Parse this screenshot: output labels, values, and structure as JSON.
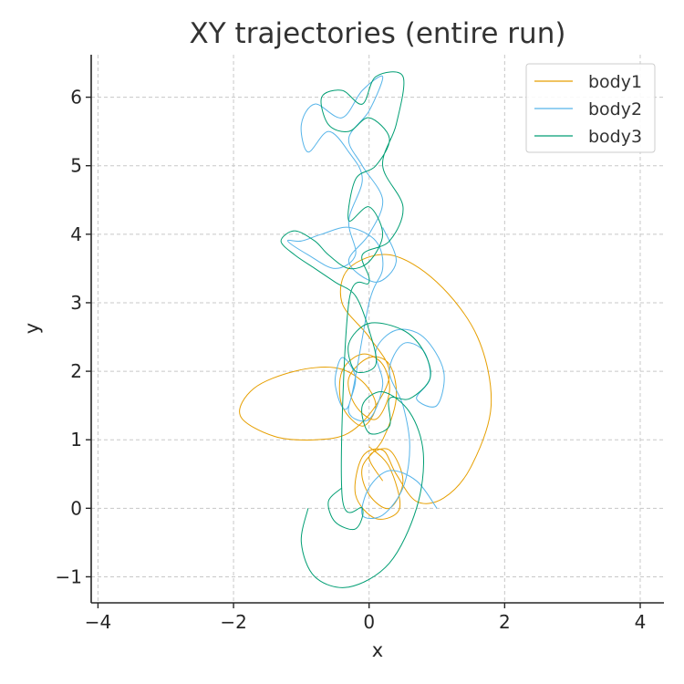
{
  "chart_data": {
    "type": "line",
    "title": "XY trajectories (entire run)",
    "xlabel": "x",
    "ylabel": "y",
    "xlim": [
      -4.1,
      4.35
    ],
    "ylim": [
      -1.38,
      6.62
    ],
    "xticks": [
      -4,
      -2,
      0,
      2,
      4
    ],
    "yticks": [
      -1,
      0,
      1,
      2,
      3,
      4,
      5,
      6
    ],
    "xtick_labels": [
      "−4",
      "−2",
      "0",
      "2",
      "4"
    ],
    "ytick_labels": [
      "−1",
      "0",
      "1",
      "2",
      "3",
      "4",
      "5",
      "6"
    ],
    "grid": true,
    "legend_position": "top-right",
    "series": [
      {
        "name": "body1",
        "color": "#E69F00",
        "points": [
          [
            0.0,
            0.9
          ],
          [
            0.3,
            0.6
          ],
          [
            0.45,
            0.0
          ],
          [
            0.1,
            -0.15
          ],
          [
            -0.2,
            0.2
          ],
          [
            -0.1,
            0.75
          ],
          [
            0.2,
            0.85
          ],
          [
            0.4,
            0.5
          ],
          [
            0.7,
            0.1
          ],
          [
            1.1,
            0.15
          ],
          [
            1.5,
            0.6
          ],
          [
            1.8,
            1.5
          ],
          [
            1.6,
            2.5
          ],
          [
            1.0,
            3.3
          ],
          [
            0.3,
            3.7
          ],
          [
            -0.3,
            3.5
          ],
          [
            -0.4,
            3.0
          ],
          [
            0.0,
            2.5
          ],
          [
            0.3,
            2.0
          ],
          [
            0.1,
            1.5
          ],
          [
            -0.3,
            1.1
          ],
          [
            -0.8,
            1.0
          ],
          [
            -1.4,
            1.05
          ],
          [
            -1.9,
            1.35
          ],
          [
            -1.7,
            1.75
          ],
          [
            -1.1,
            2.0
          ],
          [
            -0.5,
            2.05
          ],
          [
            -0.1,
            1.85
          ],
          [
            0.1,
            1.5
          ],
          [
            -0.1,
            1.2
          ],
          [
            -0.4,
            1.5
          ],
          [
            -0.4,
            2.0
          ],
          [
            -0.1,
            2.25
          ],
          [
            0.2,
            2.1
          ],
          [
            0.3,
            1.7
          ],
          [
            0.1,
            1.3
          ],
          [
            -0.2,
            1.5
          ],
          [
            -0.3,
            1.9
          ],
          [
            0.0,
            2.2
          ],
          [
            0.3,
            2.1
          ],
          [
            0.4,
            1.6
          ],
          [
            0.2,
            1.0
          ],
          [
            -0.1,
            0.6
          ],
          [
            0.0,
            0.2
          ],
          [
            0.3,
            0.0
          ],
          [
            0.5,
            0.4
          ],
          [
            0.3,
            0.85
          ],
          [
            0.0,
            0.75
          ],
          [
            0.2,
            0.4
          ]
        ]
      },
      {
        "name": "body2",
        "color": "#56B4E9",
        "points": [
          [
            1.0,
            0.0
          ],
          [
            0.7,
            0.4
          ],
          [
            0.3,
            0.55
          ],
          [
            0.0,
            0.3
          ],
          [
            -0.1,
            -0.1
          ],
          [
            0.2,
            -0.1
          ],
          [
            0.5,
            0.3
          ],
          [
            0.6,
            0.9
          ],
          [
            0.5,
            1.5
          ],
          [
            0.3,
            2.0
          ],
          [
            0.5,
            2.4
          ],
          [
            0.8,
            2.3
          ],
          [
            0.9,
            1.9
          ],
          [
            0.7,
            1.6
          ],
          [
            1.0,
            1.5
          ],
          [
            1.1,
            2.0
          ],
          [
            0.8,
            2.5
          ],
          [
            0.4,
            2.6
          ],
          [
            0.1,
            2.3
          ],
          [
            0.2,
            1.8
          ],
          [
            0.0,
            1.3
          ],
          [
            -0.3,
            1.4
          ],
          [
            -0.2,
            1.9
          ],
          [
            -0.4,
            2.2
          ],
          [
            -0.5,
            1.8
          ],
          [
            -0.3,
            1.5
          ],
          [
            0.0,
            3.0
          ],
          [
            0.2,
            3.5
          ],
          [
            0.1,
            3.9
          ],
          [
            -0.3,
            4.1
          ],
          [
            -0.7,
            4.0
          ],
          [
            -1.0,
            3.9
          ],
          [
            -1.2,
            3.9
          ],
          [
            -0.9,
            3.7
          ],
          [
            -0.5,
            3.5
          ],
          [
            -0.2,
            3.7
          ],
          [
            -0.3,
            4.2
          ],
          [
            -0.1,
            4.8
          ],
          [
            -0.3,
            5.2
          ],
          [
            -0.6,
            5.5
          ],
          [
            -0.9,
            5.2
          ],
          [
            -1.0,
            5.6
          ],
          [
            -0.8,
            5.9
          ],
          [
            -0.4,
            5.7
          ],
          [
            -0.1,
            6.1
          ],
          [
            0.2,
            6.3
          ],
          [
            0.0,
            5.8
          ],
          [
            -0.3,
            5.4
          ],
          [
            -0.1,
            5.0
          ],
          [
            0.2,
            4.5
          ],
          [
            0.0,
            4.0
          ],
          [
            -0.3,
            3.6
          ],
          [
            0.1,
            3.3
          ],
          [
            0.4,
            3.6
          ],
          [
            0.2,
            4.1
          ]
        ]
      },
      {
        "name": "body3",
        "color": "#009E73",
        "points": [
          [
            -0.9,
            0.0
          ],
          [
            -1.0,
            -0.5
          ],
          [
            -0.8,
            -1.0
          ],
          [
            -0.3,
            -1.15
          ],
          [
            0.3,
            -0.8
          ],
          [
            0.7,
            0.0
          ],
          [
            0.8,
            0.8
          ],
          [
            0.6,
            1.4
          ],
          [
            0.2,
            1.7
          ],
          [
            -0.1,
            1.5
          ],
          [
            0.0,
            1.1
          ],
          [
            0.3,
            1.2
          ],
          [
            0.3,
            1.6
          ],
          [
            0.6,
            1.6
          ],
          [
            0.9,
            1.9
          ],
          [
            0.8,
            2.3
          ],
          [
            0.5,
            2.6
          ],
          [
            0.0,
            2.7
          ],
          [
            -0.3,
            2.4
          ],
          [
            -0.2,
            2.0
          ],
          [
            0.1,
            2.1
          ],
          [
            0.0,
            2.6
          ],
          [
            -0.2,
            3.1
          ],
          [
            -0.5,
            3.3
          ],
          [
            -0.8,
            3.5
          ],
          [
            -1.1,
            3.7
          ],
          [
            -1.3,
            3.9
          ],
          [
            -1.1,
            4.05
          ],
          [
            -0.8,
            3.9
          ],
          [
            -0.6,
            3.7
          ],
          [
            -0.3,
            3.5
          ],
          [
            0.0,
            3.6
          ],
          [
            0.2,
            4.0
          ],
          [
            0.0,
            4.4
          ],
          [
            -0.3,
            4.2
          ],
          [
            -0.2,
            4.8
          ],
          [
            0.1,
            5.0
          ],
          [
            0.3,
            5.4
          ],
          [
            0.0,
            5.7
          ],
          [
            -0.3,
            5.5
          ],
          [
            -0.6,
            5.6
          ],
          [
            -0.7,
            6.0
          ],
          [
            -0.4,
            6.1
          ],
          [
            -0.1,
            5.9
          ],
          [
            0.1,
            6.3
          ],
          [
            0.5,
            6.3
          ],
          [
            0.4,
            5.6
          ],
          [
            0.2,
            5.0
          ],
          [
            0.5,
            4.4
          ],
          [
            0.3,
            3.9
          ],
          [
            -0.1,
            3.7
          ],
          [
            0.0,
            3.3
          ],
          [
            -0.3,
            3.0
          ],
          [
            -0.4,
            0.2
          ],
          [
            -0.1,
            0.0
          ],
          [
            -0.2,
            -0.3
          ],
          [
            -0.5,
            -0.2
          ],
          [
            -0.6,
            0.1
          ],
          [
            -0.4,
            0.3
          ]
        ]
      }
    ]
  }
}
